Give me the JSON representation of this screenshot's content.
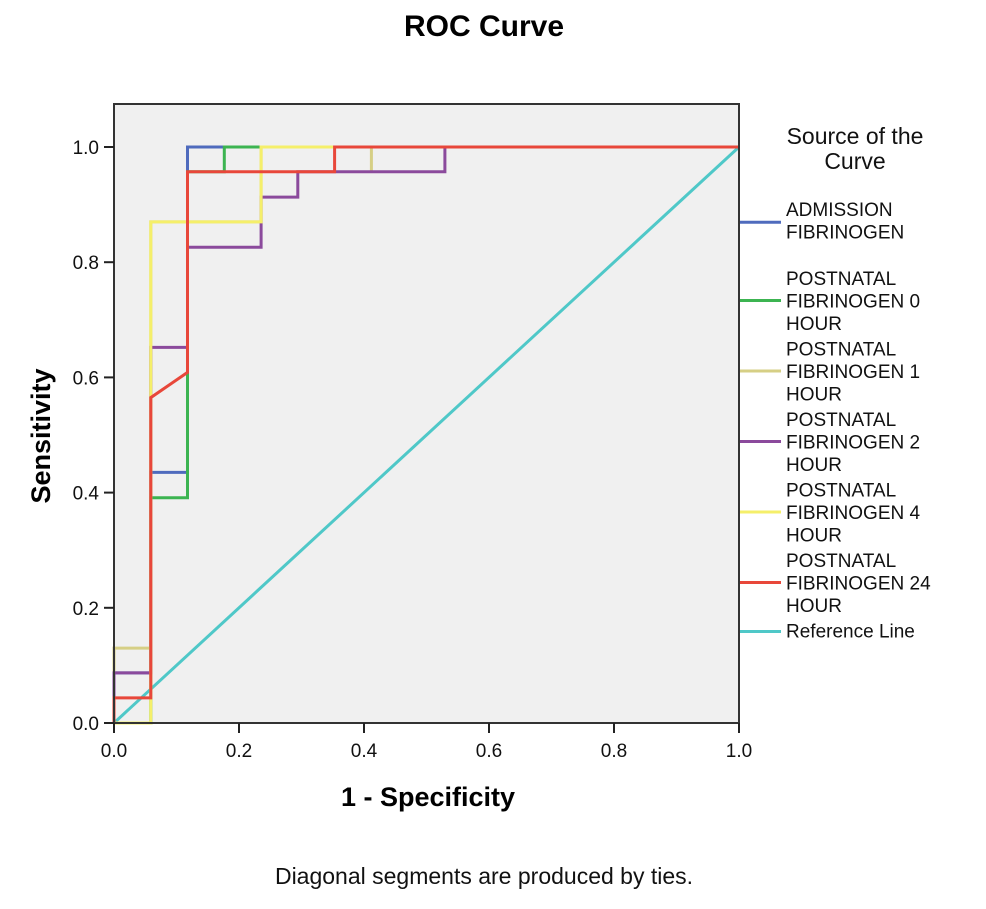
{
  "chart_data": {
    "type": "line",
    "title": "ROC Curve",
    "xlabel": "1 - Specificity",
    "ylabel": "Sensitivity",
    "xlim": [
      0,
      1
    ],
    "ylim": [
      0,
      1
    ],
    "xticks": [
      "0.0",
      "0.2",
      "0.4",
      "0.6",
      "0.8",
      "1.0"
    ],
    "yticks": [
      "0.0",
      "0.2",
      "0.4",
      "0.6",
      "0.8",
      "1.0"
    ],
    "grid": false,
    "plot_background": "#f0f0f0",
    "legend": {
      "title": "Source of the Curve",
      "placement": "right"
    },
    "footnote": "Diagonal segments are produced by ties.",
    "series": [
      {
        "name": "ADMISSION FIBRINOGEN",
        "legend_lines": [
          "ADMISSION",
          "FIBRINOGEN"
        ],
        "color": "#4f6bbd",
        "points": [
          [
            0,
            0
          ],
          [
            0,
            0.087
          ],
          [
            0.0588,
            0.087
          ],
          [
            0.0588,
            0.435
          ],
          [
            0.1176,
            0.435
          ],
          [
            0.1176,
            1.0
          ],
          [
            1.0,
            1.0
          ]
        ]
      },
      {
        "name": "POSTNATAL FIBRINOGEN 0 HOUR",
        "legend_lines": [
          "POSTNATAL",
          "FIBRINOGEN 0",
          "HOUR"
        ],
        "color": "#3cb451",
        "points": [
          [
            0,
            0
          ],
          [
            0.0588,
            0
          ],
          [
            0.0588,
            0.391
          ],
          [
            0.1176,
            0.391
          ],
          [
            0.1176,
            0.957
          ],
          [
            0.1765,
            0.957
          ],
          [
            0.1765,
            1.0
          ],
          [
            1.0,
            1.0
          ]
        ]
      },
      {
        "name": "POSTNATAL FIBRINOGEN 1 HOUR",
        "legend_lines": [
          "POSTNATAL",
          "FIBRINOGEN 1",
          "HOUR"
        ],
        "color": "#d6cf85",
        "points": [
          [
            0,
            0
          ],
          [
            0,
            0.13
          ],
          [
            0.0588,
            0.13
          ],
          [
            0.0588,
            0.652
          ],
          [
            0.0588,
            0.87
          ],
          [
            0.2353,
            0.87
          ],
          [
            0.2353,
            1.0
          ],
          [
            0.4118,
            1.0
          ],
          [
            0.4118,
            0.957
          ],
          [
            0.4118,
            1.0
          ],
          [
            1.0,
            1.0
          ]
        ]
      },
      {
        "name": "POSTNATAL FIBRINOGEN 2 HOUR",
        "legend_lines": [
          "POSTNATAL",
          "FIBRINOGEN 2",
          "HOUR"
        ],
        "color": "#8b4a9c",
        "points": [
          [
            0,
            0
          ],
          [
            0,
            0.087
          ],
          [
            0.0588,
            0.087
          ],
          [
            0.0588,
            0.652
          ],
          [
            0.1176,
            0.652
          ],
          [
            0.1176,
            0.826
          ],
          [
            0.2353,
            0.826
          ],
          [
            0.2353,
            0.913
          ],
          [
            0.2941,
            0.913
          ],
          [
            0.2941,
            0.957
          ],
          [
            0.5294,
            0.957
          ],
          [
            0.5294,
            1.0
          ],
          [
            1.0,
            1.0
          ]
        ]
      },
      {
        "name": "POSTNATAL FIBRINOGEN 4 HOUR",
        "legend_lines": [
          "POSTNATAL",
          "FIBRINOGEN 4",
          "HOUR"
        ],
        "color": "#f5ef6a",
        "points": [
          [
            0,
            0
          ],
          [
            0.0588,
            0
          ],
          [
            0.0588,
            0.87
          ],
          [
            0.2353,
            0.87
          ],
          [
            0.2353,
            1.0
          ],
          [
            1.0,
            1.0
          ]
        ]
      },
      {
        "name": "POSTNATAL FIBRINOGEN 24 HOUR",
        "legend_lines": [
          "POSTNATAL",
          "FIBRINOGEN 24",
          "HOUR"
        ],
        "color": "#e8473a",
        "points": [
          [
            0,
            0
          ],
          [
            0,
            0.0435
          ],
          [
            0.0588,
            0.0435
          ],
          [
            0.0588,
            0.565
          ],
          [
            0.1176,
            0.6087
          ],
          [
            0.1176,
            0.957
          ],
          [
            0.3529,
            0.957
          ],
          [
            0.3529,
            1.0
          ],
          [
            1.0,
            1.0
          ]
        ]
      },
      {
        "name": "Reference Line",
        "legend_lines": [
          "Reference Line"
        ],
        "color": "#4fc8c8",
        "points": [
          [
            0,
            0
          ],
          [
            1,
            1
          ]
        ]
      }
    ]
  }
}
